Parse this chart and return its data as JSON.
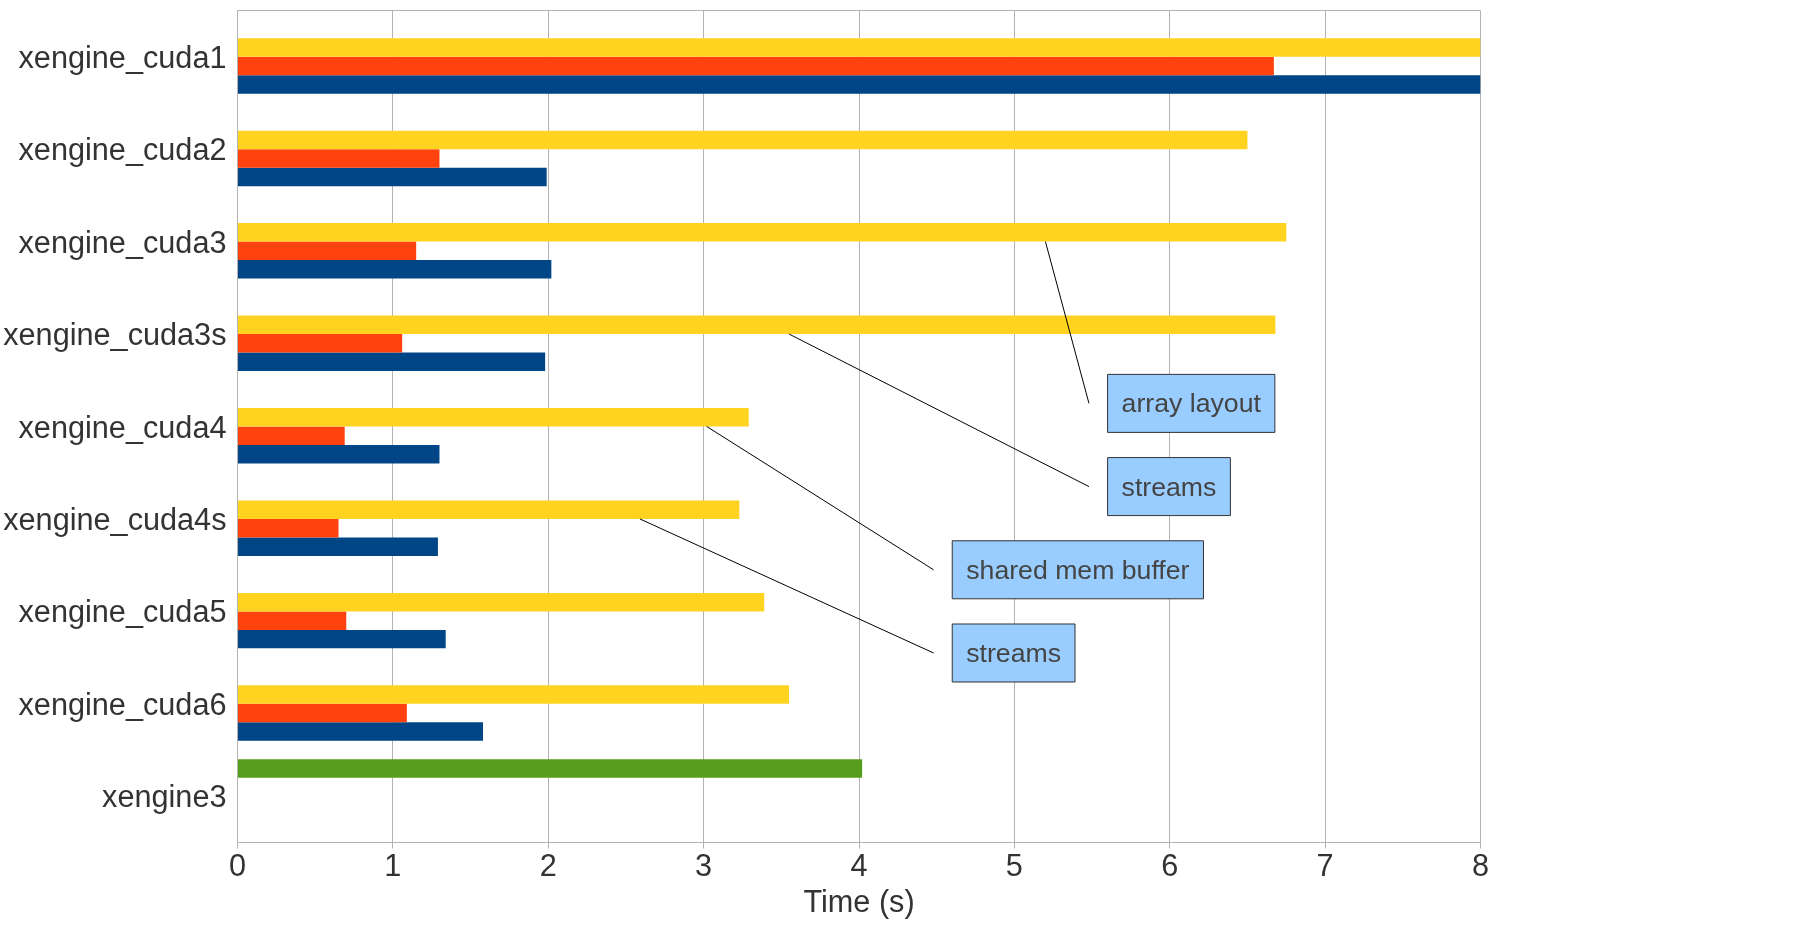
{
  "chart_data": {
    "type": "bar",
    "orientation": "horizontal",
    "xlabel": "Time (s)",
    "categories": [
      "xengine_cuda1",
      "xengine_cuda2",
      "xengine_cuda3",
      "xengine_cuda3s",
      "xengine_cuda4",
      "xengine_cuda4s",
      "xengine_cuda5",
      "xengine_cuda6",
      "xengine3"
    ],
    "series": [
      {
        "color": "#004586",
        "values": [
          8,
          1.99,
          2.02,
          1.98,
          1.3,
          1.29,
          1.34,
          1.58,
          null
        ]
      },
      {
        "color": "#ff420e",
        "values": [
          6.67,
          1.3,
          1.15,
          1.06,
          0.69,
          0.65,
          0.7,
          1.09,
          null
        ]
      },
      {
        "color": "#ffd320",
        "values": [
          8,
          6.5,
          6.75,
          6.68,
          3.29,
          3.23,
          3.39,
          3.55,
          null
        ]
      },
      {
        "color": "#579d1c",
        "values": [
          null,
          null,
          null,
          null,
          null,
          null,
          null,
          null,
          4.02
        ]
      }
    ],
    "xlim": [
      0,
      8
    ],
    "xticks": [
      0,
      1,
      2,
      3,
      4,
      5,
      6,
      7,
      8
    ],
    "grid": "x",
    "annotations": [
      {
        "text": "array layout",
        "x": 5.2,
        "y": "xengine_cuda3"
      },
      {
        "text": "streams",
        "x": 3.55,
        "y": "xengine_cuda3s"
      },
      {
        "text": "shared mem buffer",
        "x": 3.02,
        "y": "xengine_cuda4"
      },
      {
        "text": "streams",
        "x": 2.59,
        "y": "xengine_cuda4s"
      }
    ]
  }
}
